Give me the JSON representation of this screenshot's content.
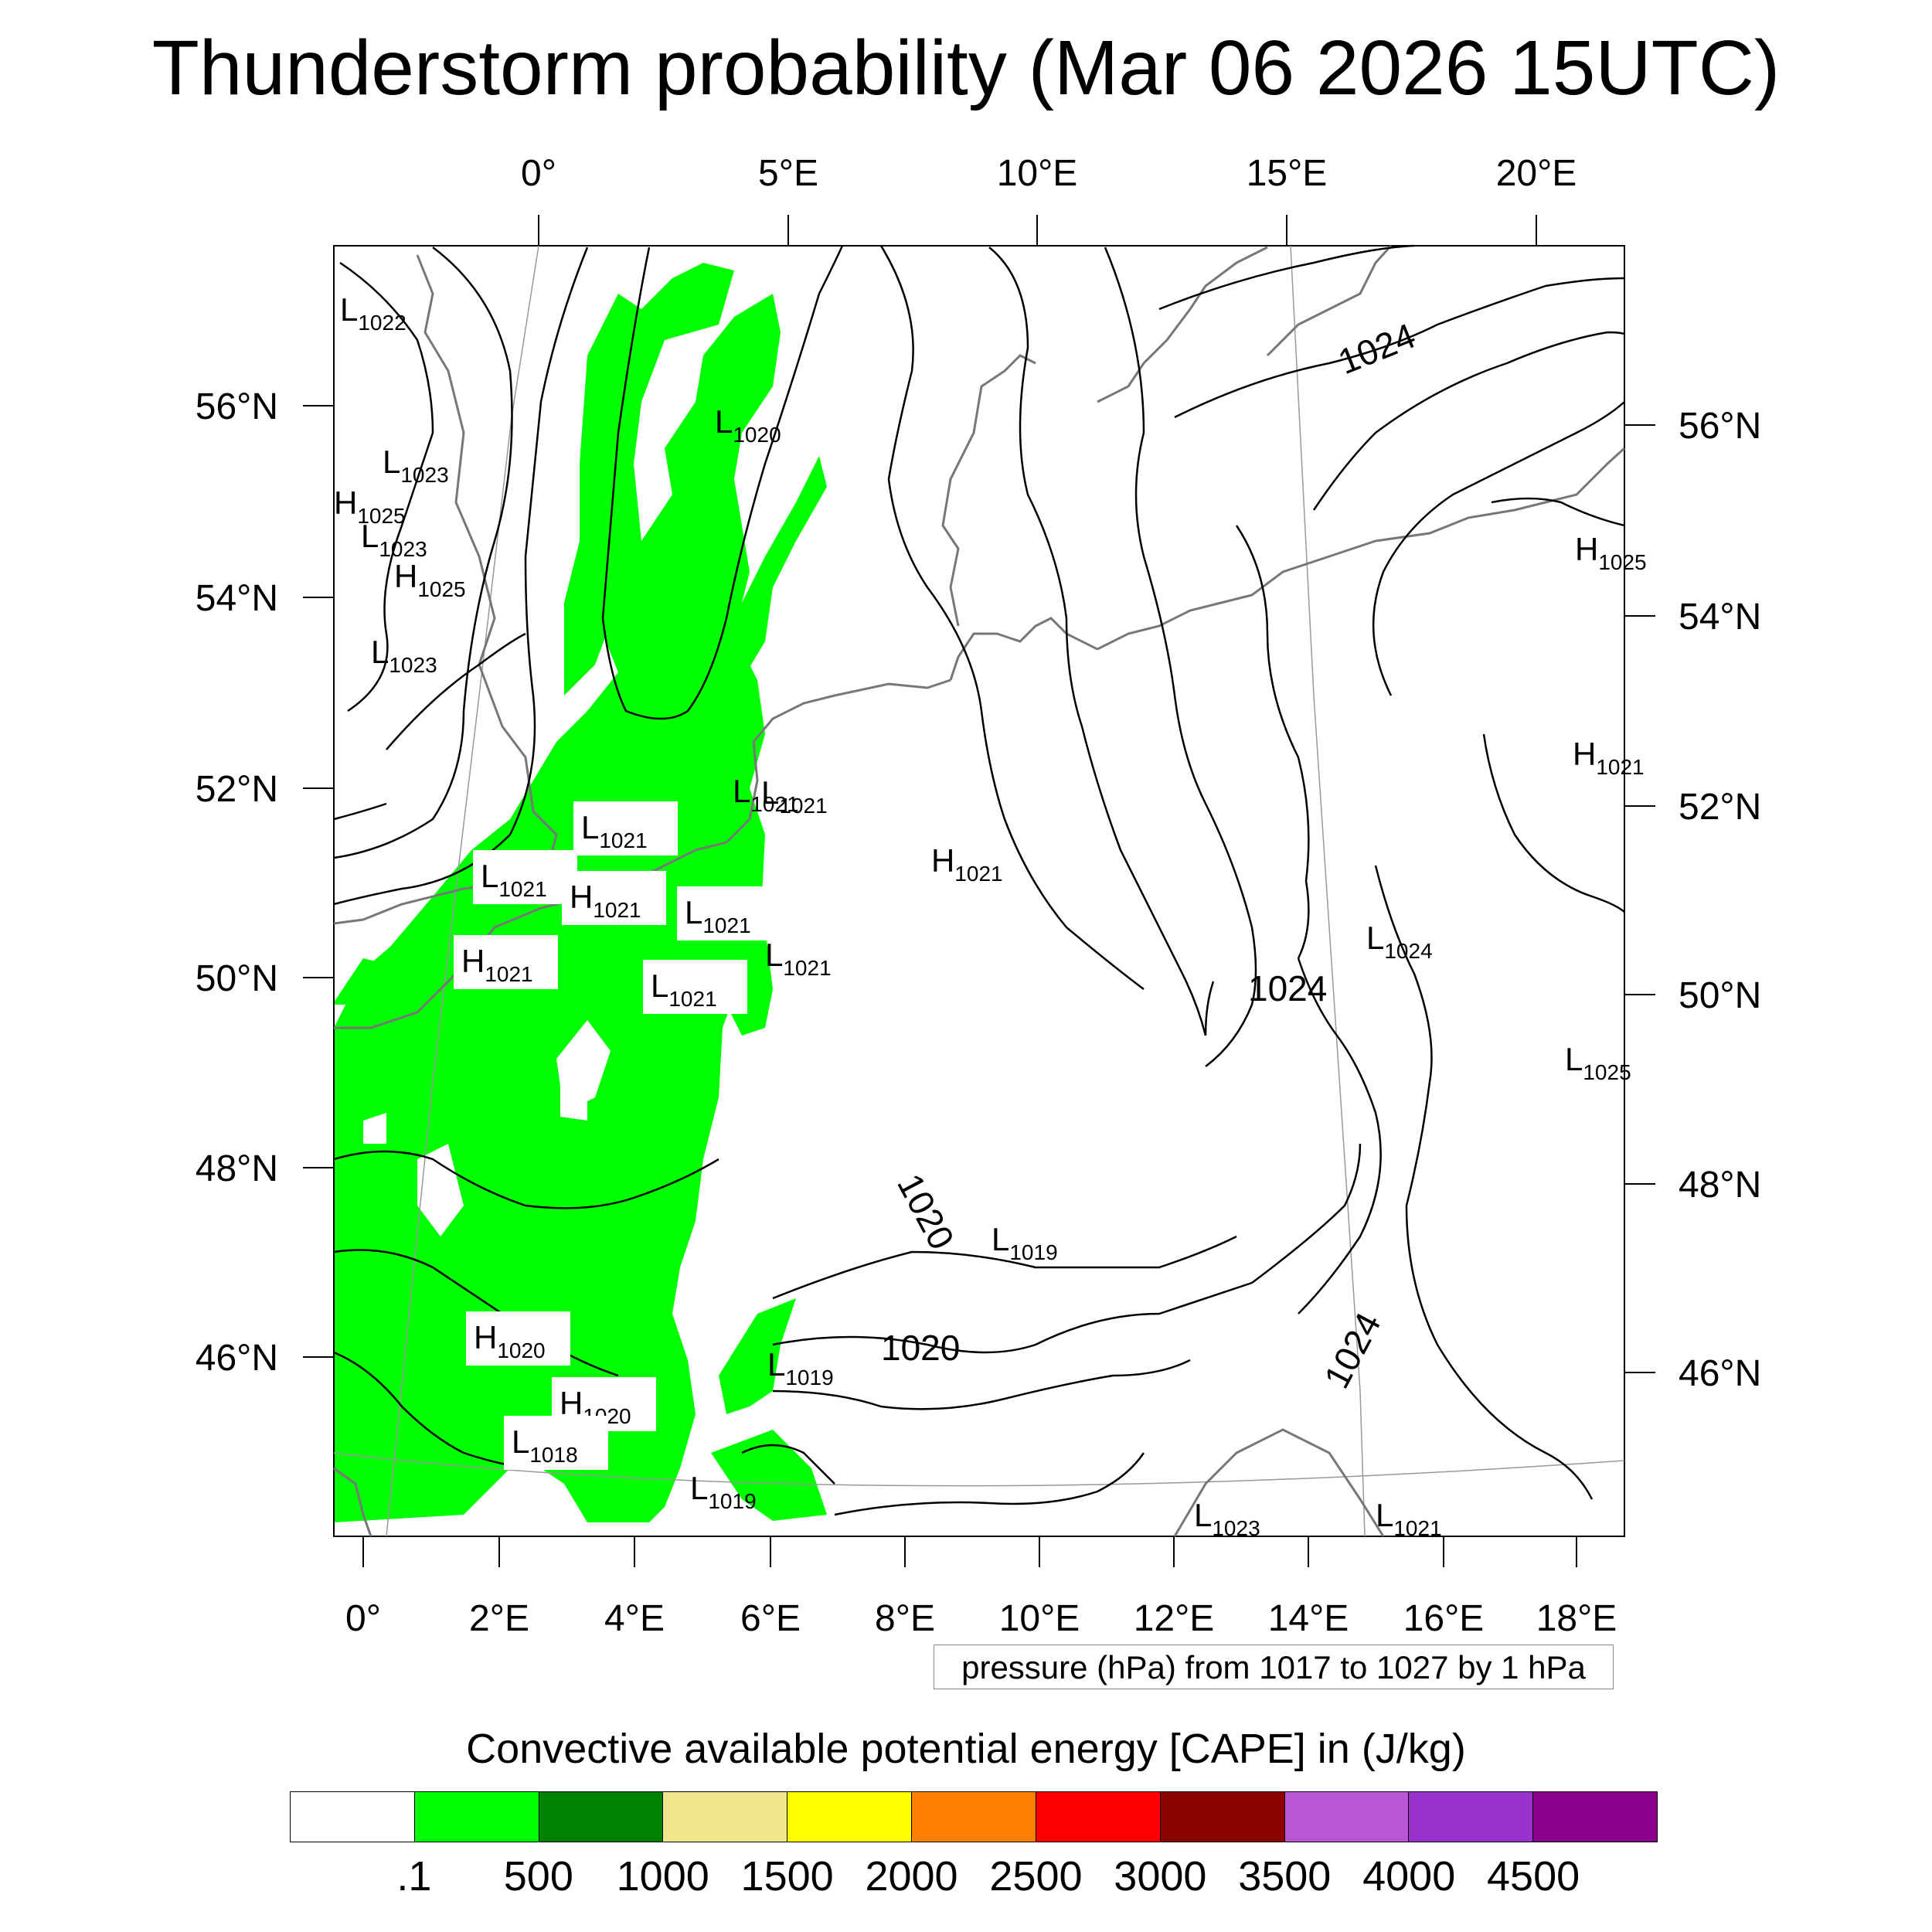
{
  "title": "Thunderstorm probability (Mar 06 2026 15UTC)",
  "top_lon_labels": [
    "0°",
    "5°E",
    "10°E",
    "15°E",
    "20°E"
  ],
  "bottom_lon_labels": [
    "0°",
    "2°E",
    "4°E",
    "6°E",
    "8°E",
    "10°E",
    "12°E",
    "14°E",
    "16°E",
    "18°E"
  ],
  "left_lat_labels": [
    "56°N",
    "54°N",
    "52°N",
    "50°N",
    "48°N",
    "46°N"
  ],
  "right_lat_labels": [
    "56°N",
    "54°N",
    "52°N",
    "50°N",
    "48°N",
    "46°N"
  ],
  "pressure_labels": [
    {
      "type": "L",
      "value": "1022"
    },
    {
      "type": "L",
      "value": "1023"
    },
    {
      "type": "H",
      "value": "1025"
    },
    {
      "type": "L",
      "value": "1023"
    },
    {
      "type": "H",
      "value": "1025"
    },
    {
      "type": "L",
      "value": "1023"
    },
    {
      "type": "L",
      "value": "1020"
    },
    {
      "type": "L",
      "value": "1021"
    },
    {
      "type": "L",
      "value": "1021"
    },
    {
      "type": "L",
      "value": "1021"
    },
    {
      "type": "H",
      "value": "1021"
    },
    {
      "type": "L",
      "value": "1021"
    },
    {
      "type": "H",
      "value": "1021"
    },
    {
      "type": "L",
      "value": "1021"
    },
    {
      "type": "H",
      "value": "1021"
    },
    {
      "type": "L",
      "value": "1021"
    },
    {
      "type": "L",
      "value": "1024"
    },
    {
      "type": "L",
      "value": "1025"
    },
    {
      "type": "L",
      "value": "1019"
    },
    {
      "type": "H",
      "value": "1020"
    },
    {
      "type": "L",
      "value": "1019"
    },
    {
      "type": "H",
      "value": "1020"
    },
    {
      "type": "L",
      "value": "1018"
    },
    {
      "type": "L",
      "value": "1019"
    },
    {
      "type": "L",
      "value": "1021"
    },
    {
      "type": "H",
      "value": "1025"
    },
    {
      "type": "H",
      "value": "1021"
    },
    {
      "type": "L",
      "value": "1023"
    },
    {
      "type": "L",
      "value": "1021"
    }
  ],
  "isobar_labels": [
    "1024",
    "1024",
    "1020",
    "1020",
    "1024"
  ],
  "pressure_note": "pressure (hPa) from 1017 to 1027 by 1 hPa",
  "colorbar": {
    "title": "Convective available potential energy [CAPE] in (J/kg)",
    "colors": [
      "#ffffff",
      "#00ff00",
      "#008000",
      "#f0e68c",
      "#ffff00",
      "#ff8000",
      "#ff0000",
      "#8b0000",
      "#ba55d3",
      "#9932cc",
      "#8b008b"
    ],
    "labels": [
      ".1",
      "500",
      "1000",
      "1500",
      "2000",
      "2500",
      "3000",
      "3500",
      "4000",
      "4500"
    ]
  }
}
